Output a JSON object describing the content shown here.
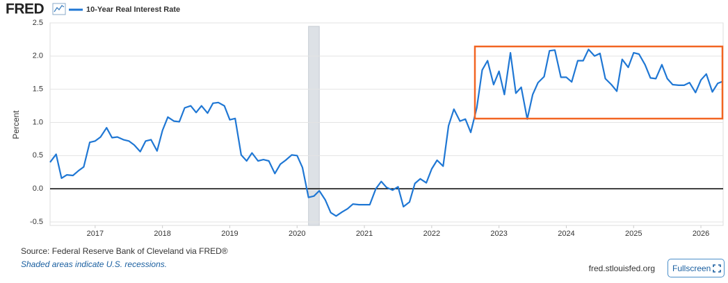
{
  "chart_data": {
    "type": "line",
    "logo": "FRED",
    "y_label": "Percent",
    "source": "Source: Federal Reserve Bank of Cleveland via FRED®",
    "note": "Shaded areas indicate U.S. recessions.",
    "url": "fred.stlouisfed.org",
    "xlim": [
      2016.33,
      2026.33
    ],
    "xticks": [
      2017,
      2018,
      2019,
      2020,
      2021,
      2022,
      2023,
      2024,
      2025,
      2026
    ],
    "ylim": [
      -0.5,
      2.5
    ],
    "yticks": [
      -0.5,
      {
        "value": 0,
        "label": "0.0"
      },
      0.5,
      {
        "value": 1,
        "label": "1.0"
      },
      1.5,
      {
        "value": 2,
        "label": "2.0"
      },
      2.5
    ],
    "grid": true,
    "recessions": [
      [
        2020.17,
        2020.33
      ]
    ],
    "x": [
      2016.33,
      2016.42,
      2016.5,
      2016.58,
      2016.67,
      2016.75,
      2016.83,
      2016.92,
      2017,
      2017.08,
      2017.17,
      2017.25,
      2017.33,
      2017.42,
      2017.5,
      2017.58,
      2017.67,
      2017.75,
      2017.83,
      2017.92,
      2018,
      2018.08,
      2018.17,
      2018.25,
      2018.33,
      2018.42,
      2018.5,
      2018.58,
      2018.67,
      2018.75,
      2018.83,
      2018.92,
      2019,
      2019.08,
      2019.17,
      2019.25,
      2019.33,
      2019.42,
      2019.5,
      2019.58,
      2019.67,
      2019.75,
      2019.83,
      2019.92,
      2020,
      2020.08,
      2020.17,
      2020.25,
      2020.33,
      2020.42,
      2020.5,
      2020.58,
      2020.67,
      2020.75,
      2020.83,
      2020.92,
      2021,
      2021.08,
      2021.17,
      2021.25,
      2021.33,
      2021.42,
      2021.5,
      2021.58,
      2021.67,
      2021.75,
      2021.83,
      2021.92,
      2022,
      2022.08,
      2022.17,
      2022.25,
      2022.33,
      2022.42,
      2022.5,
      2022.58,
      2022.67,
      2022.75,
      2022.83,
      2022.92,
      2023,
      2023.08,
      2023.17,
      2023.25,
      2023.33,
      2023.42,
      2023.5,
      2023.58,
      2023.67,
      2023.75,
      2023.83,
      2023.92,
      2024,
      2024.08,
      2024.17,
      2024.25,
      2024.33,
      2024.42,
      2024.5,
      2024.58,
      2024.67,
      2024.75,
      2024.83,
      2024.92,
      2025,
      2025.08,
      2025.17,
      2025.25,
      2025.33,
      2025.42,
      2025.5,
      2025.58,
      2025.67,
      2025.75,
      2025.83,
      2025.92,
      2026,
      2026.08,
      2026.17,
      2026.25,
      2026.33
    ],
    "series": [
      {
        "name": "10-Year Real Interest Rate",
        "color": "#1f77d4",
        "values": [
          0.4,
          0.52,
          0.16,
          0.21,
          0.2,
          0.27,
          0.33,
          0.7,
          0.72,
          0.78,
          0.92,
          0.77,
          0.78,
          0.74,
          0.72,
          0.66,
          0.56,
          0.72,
          0.74,
          0.57,
          0.88,
          1.08,
          1.02,
          1.01,
          1.22,
          1.25,
          1.15,
          1.25,
          1.14,
          1.29,
          1.3,
          1.25,
          1.04,
          1.06,
          0.51,
          0.42,
          0.54,
          0.42,
          0.44,
          0.42,
          0.23,
          0.37,
          0.43,
          0.51,
          0.5,
          0.32,
          -0.13,
          -0.11,
          -0.03,
          -0.17,
          -0.36,
          -0.41,
          -0.35,
          -0.3,
          -0.23,
          -0.24,
          -0.24,
          -0.24,
          0.0,
          0.11,
          0.02,
          -0.02,
          0.03,
          -0.27,
          -0.2,
          0.08,
          0.15,
          0.09,
          0.3,
          0.43,
          0.34,
          0.95,
          1.2,
          1.02,
          1.05,
          0.85,
          1.22,
          1.79,
          1.93,
          1.57,
          1.77,
          1.42,
          2.05,
          1.44,
          1.53,
          1.05,
          1.42,
          1.6,
          1.69,
          2.08,
          2.09,
          1.68,
          1.68,
          1.61,
          1.93,
          1.93,
          2.1,
          2.0,
          2.04,
          1.66,
          1.57,
          1.47,
          1.95,
          1.83,
          2.05,
          2.03,
          1.87,
          1.67,
          1.66,
          1.87,
          1.66,
          1.57,
          1.56,
          1.56,
          1.6,
          1.45,
          1.64,
          1.73,
          1.46,
          1.59,
          1.62
        ]
      }
    ]
  },
  "ui": {
    "fullscreen": "Fullscreen"
  }
}
